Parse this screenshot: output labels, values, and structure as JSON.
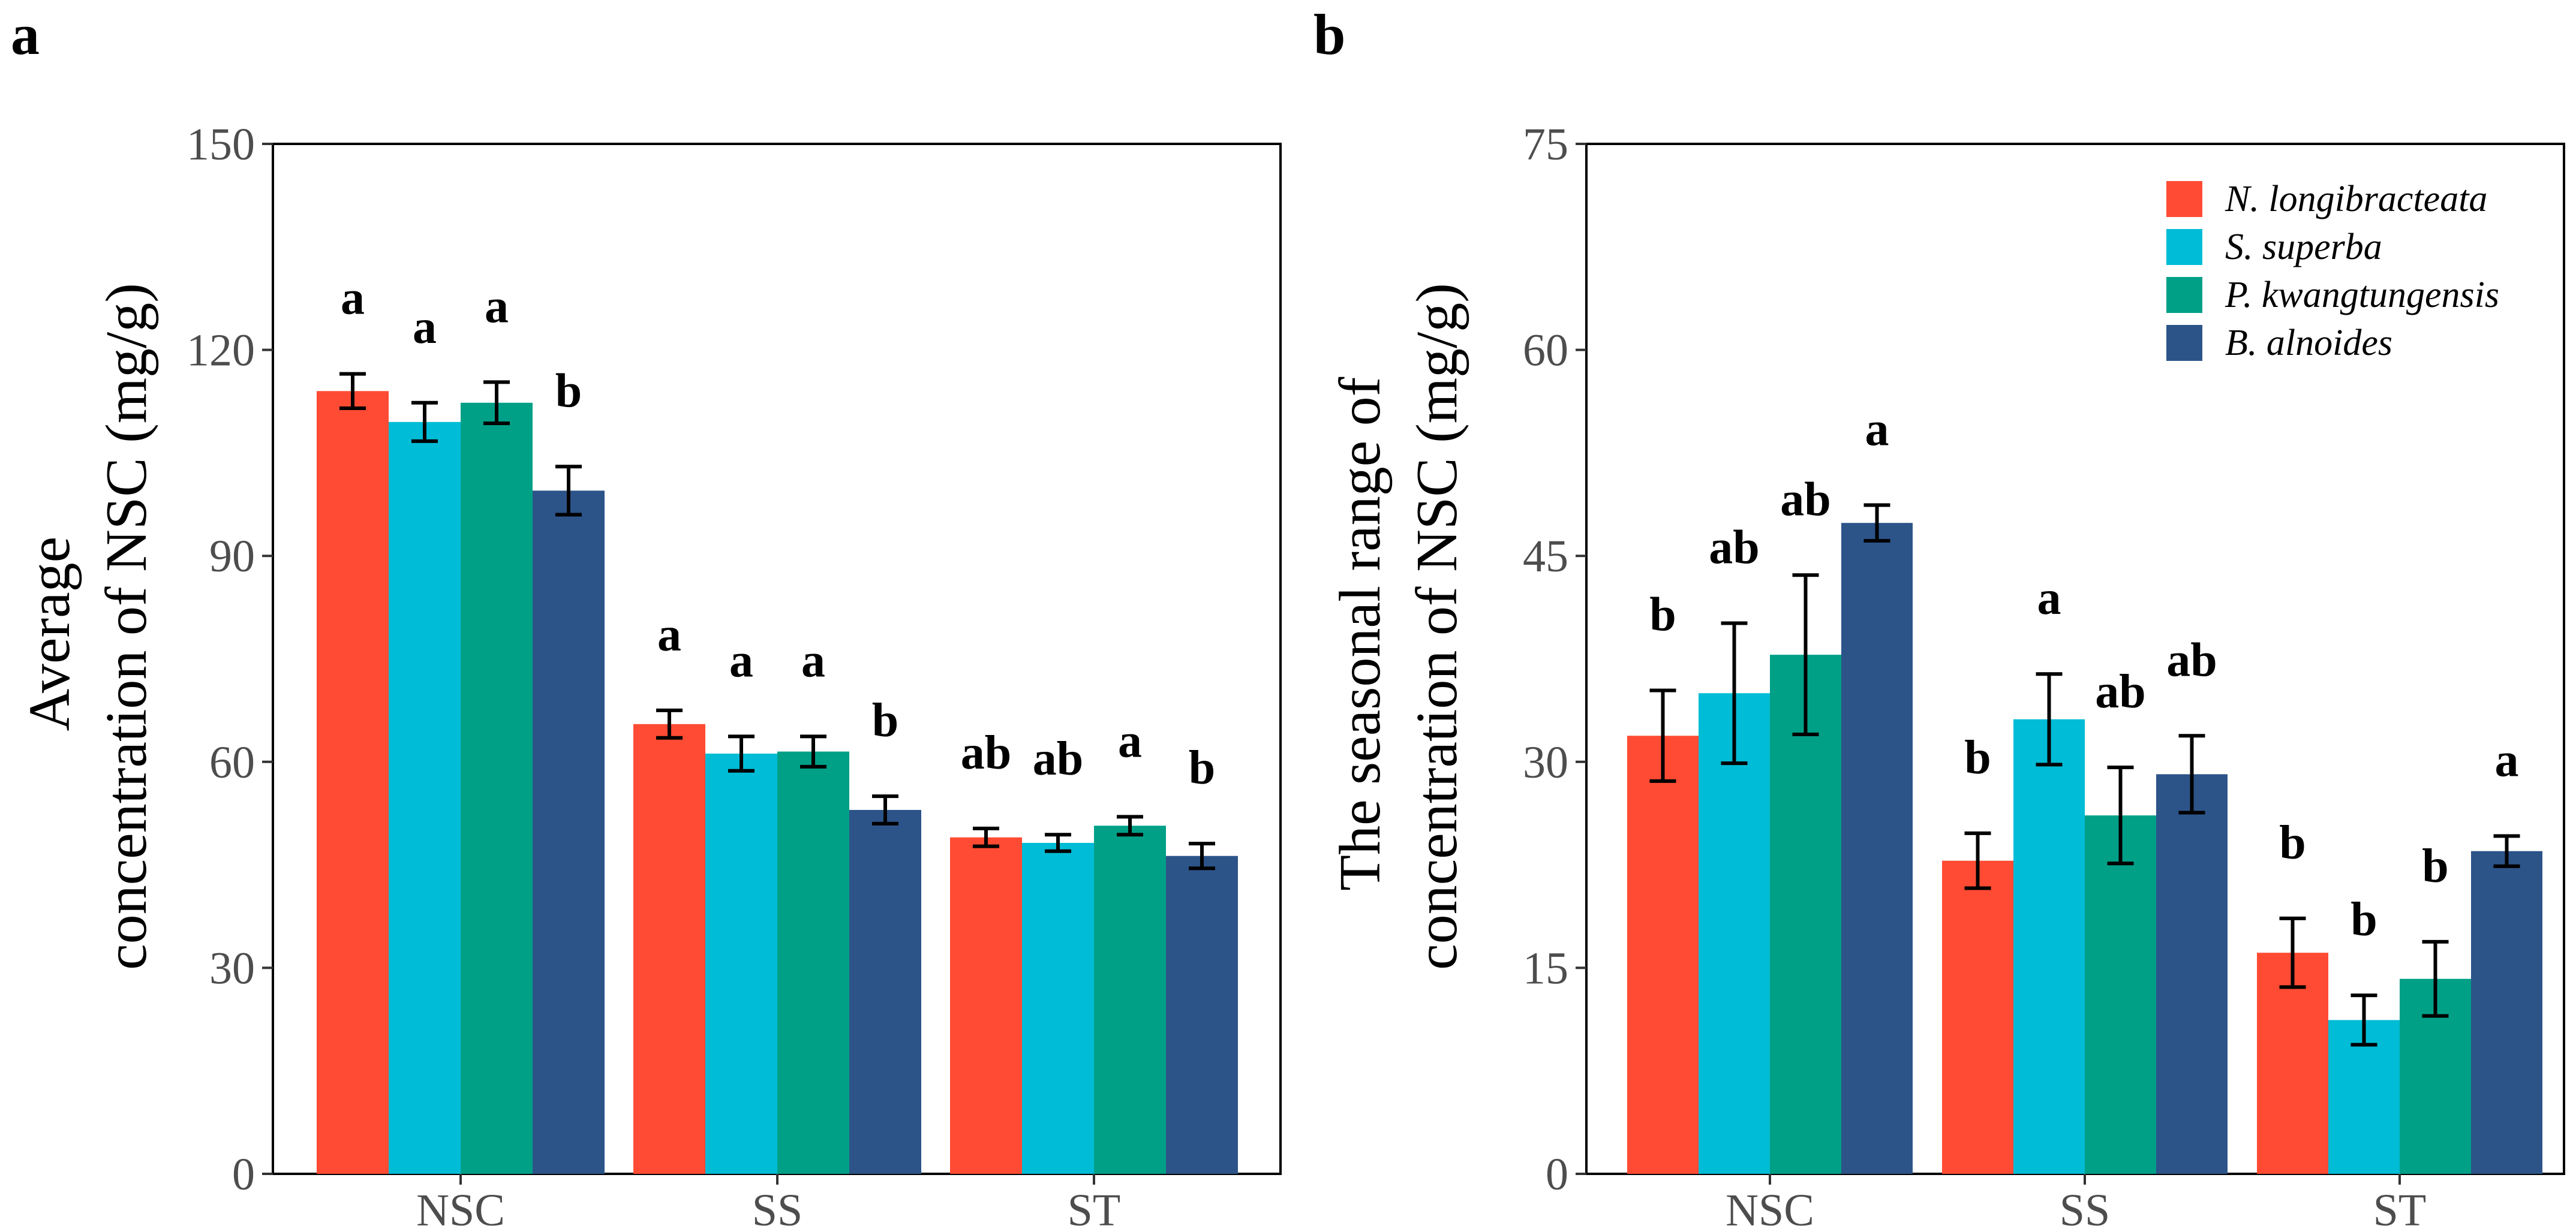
{
  "chart_data": [
    {
      "type": "bar",
      "panel_label": "a",
      "ylabel_lines": [
        "Average",
        "concentration of NSC (mg/g)"
      ],
      "xlabel": "",
      "categories": [
        "NSC",
        "SS",
        "ST"
      ],
      "ylim": [
        0,
        150
      ],
      "yticks": [
        0,
        30,
        60,
        90,
        120,
        150
      ],
      "ytick_labels": [
        "0",
        "30",
        "60",
        "90",
        "120",
        "150"
      ],
      "grid": false,
      "legend": "none",
      "series": [
        {
          "name": "N. longibracteata",
          "color": "#FF4B33",
          "values": [
            114.0,
            65.5,
            49.0
          ],
          "errors": [
            2.5,
            2.0,
            1.3
          ],
          "sig": [
            "a",
            "a",
            "ab"
          ]
        },
        {
          "name": "S. superba",
          "color": "#00BCD6",
          "values": [
            109.5,
            61.2,
            48.2
          ],
          "errors": [
            2.8,
            2.5,
            1.2
          ],
          "sig": [
            "a",
            "a",
            "ab"
          ]
        },
        {
          "name": "P. kwangtungensis",
          "color": "#00A087",
          "values": [
            112.3,
            61.5,
            50.7
          ],
          "errors": [
            3.0,
            2.2,
            1.3
          ],
          "sig": [
            "a",
            "a",
            "a"
          ]
        },
        {
          "name": "B. alnoides",
          "color": "#2C5489",
          "values": [
            99.5,
            53.0,
            46.3
          ],
          "errors": [
            3.5,
            2.0,
            1.8
          ],
          "sig": [
            "b",
            "b",
            "b"
          ]
        }
      ]
    },
    {
      "type": "bar",
      "panel_label": "b",
      "ylabel_lines": [
        "The seasonal range of",
        "concentration of NSC (mg/g)"
      ],
      "xlabel": "",
      "categories": [
        "NSC",
        "SS",
        "ST"
      ],
      "ylim": [
        0,
        75
      ],
      "yticks": [
        0,
        15,
        30,
        45,
        60,
        75
      ],
      "ytick_labels": [
        "0",
        "15",
        "30",
        "45",
        "60",
        "75"
      ],
      "grid": false,
      "legend": "top-right",
      "series": [
        {
          "name": "N. longibracteata",
          "color": "#FF4B33",
          "values": [
            31.9,
            22.8,
            16.1
          ],
          "errors": [
            3.3,
            2.0,
            2.5
          ],
          "sig": [
            "b",
            "b",
            "b"
          ]
        },
        {
          "name": "S. superba",
          "color": "#00BCD6",
          "values": [
            35.0,
            33.1,
            11.2
          ],
          "errors": [
            5.1,
            3.3,
            1.8
          ],
          "sig": [
            "ab",
            "a",
            "b"
          ]
        },
        {
          "name": "P. kwangtungensis",
          "color": "#00A087",
          "values": [
            37.8,
            26.1,
            14.2
          ],
          "errors": [
            5.8,
            3.5,
            2.7
          ],
          "sig": [
            "ab",
            "ab",
            "b"
          ]
        },
        {
          "name": "B. alnoides",
          "color": "#2C5489",
          "values": [
            47.4,
            29.1,
            23.5
          ],
          "errors": [
            1.3,
            2.8,
            1.1
          ],
          "sig": [
            "a",
            "ab",
            "a"
          ]
        }
      ]
    }
  ]
}
